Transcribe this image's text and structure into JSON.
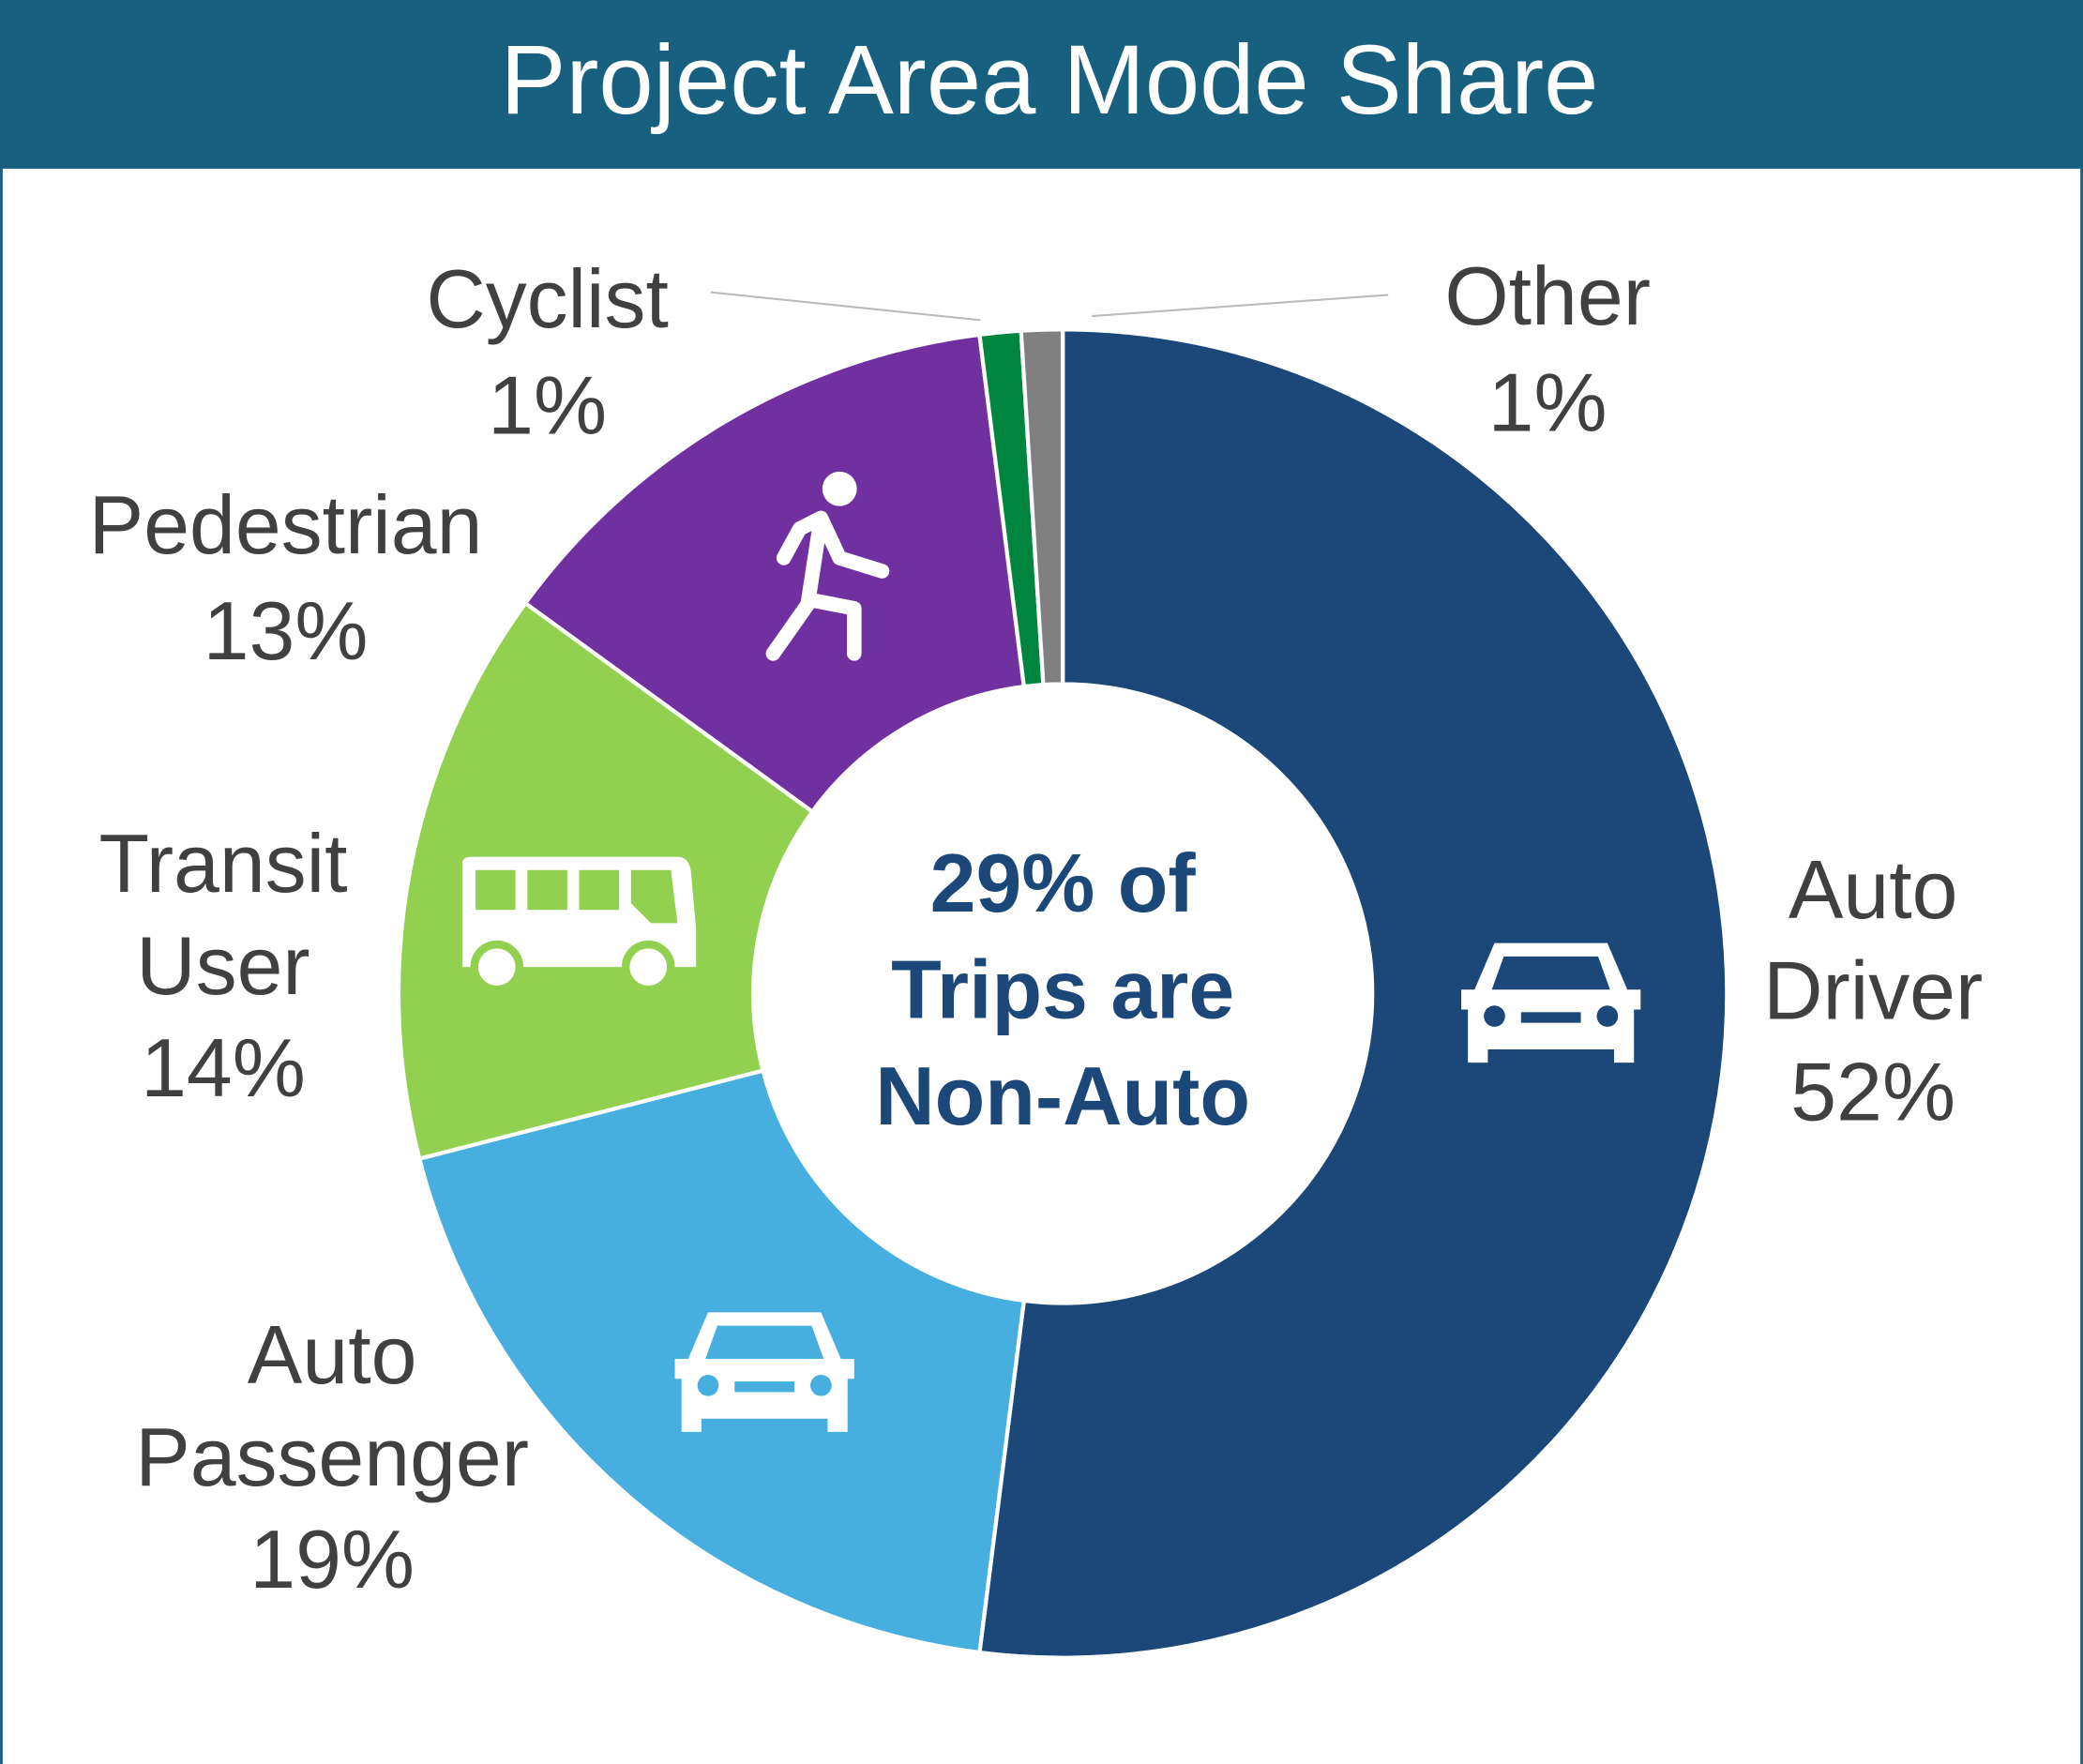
{
  "chart_data": {
    "type": "donut",
    "title": "Project Area Mode Share",
    "categories": [
      "Auto Driver",
      "Auto Passenger",
      "Transit User",
      "Pedestrian",
      "Cyclist",
      "Other"
    ],
    "values": [
      52,
      19,
      14,
      13,
      1,
      1
    ],
    "value_labels": [
      "52%",
      "19%",
      "14%",
      "13%",
      "1%",
      "1%"
    ],
    "colors": [
      "#1b4878",
      "#47aee0",
      "#92d050",
      "#7030a0",
      "#00853e",
      "#808080"
    ],
    "center_text": [
      "29% of",
      "Trips are",
      "Non-Auto"
    ]
  }
}
